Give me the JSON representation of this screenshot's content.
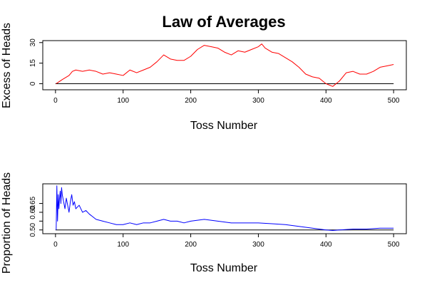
{
  "chart_data": [
    {
      "type": "line",
      "title": "Law of Averages",
      "xlabel": "Toss Number",
      "ylabel": "Excess of Heads",
      "xlim": [
        0,
        500
      ],
      "ylim": [
        -3,
        30
      ],
      "xticks": [
        0,
        100,
        200,
        300,
        400,
        500
      ],
      "yticks": [
        0,
        15,
        30
      ],
      "reference_line": 0,
      "grid": false,
      "series": [
        {
          "color": "#ff0000",
          "x": [
            1,
            10,
            20,
            25,
            30,
            40,
            50,
            60,
            70,
            80,
            90,
            100,
            110,
            120,
            130,
            140,
            150,
            160,
            170,
            180,
            190,
            200,
            210,
            220,
            230,
            240,
            250,
            260,
            270,
            280,
            290,
            300,
            305,
            310,
            320,
            330,
            340,
            350,
            360,
            370,
            380,
            390,
            400,
            405,
            410,
            420,
            430,
            440,
            450,
            460,
            470,
            480,
            490,
            500
          ],
          "y": [
            0,
            3,
            6,
            9,
            10,
            9,
            10,
            9,
            7,
            8,
            7,
            6,
            10,
            8,
            10,
            12,
            16,
            21,
            18,
            17,
            17,
            20,
            25,
            28,
            27,
            26,
            23,
            21,
            24,
            23,
            25,
            27,
            29,
            26,
            23,
            22,
            19,
            16,
            12,
            7,
            5,
            4,
            0,
            -1,
            -2,
            2,
            8,
            9,
            7,
            7,
            9,
            12,
            13,
            14
          ]
        }
      ]
    },
    {
      "type": "line",
      "xlabel": "Toss Number",
      "ylabel": "Proportion of Heads",
      "xlim": [
        0,
        500
      ],
      "ylim": [
        0.49,
        0.75
      ],
      "xticks": [
        0,
        100,
        200,
        300,
        400,
        500
      ],
      "yticks": [
        0.5,
        0.55,
        0.6,
        0.65
      ],
      "ytick_labels": [
        "0.50",
        "",
        "0.60",
        "0.65"
      ],
      "reference_line": 0.5,
      "grid": false,
      "series": [
        {
          "color": "#0000ff",
          "x": [
            1,
            2,
            3,
            4,
            5,
            6,
            7,
            8,
            9,
            10,
            12,
            14,
            16,
            18,
            20,
            22,
            24,
            26,
            28,
            30,
            35,
            40,
            45,
            50,
            60,
            70,
            80,
            90,
            100,
            110,
            120,
            130,
            140,
            150,
            160,
            170,
            180,
            190,
            200,
            220,
            240,
            260,
            280,
            300,
            320,
            340,
            360,
            380,
            400,
            410,
            420,
            440,
            460,
            480,
            500
          ],
          "y": [
            0.5,
            0.75,
            0.55,
            0.7,
            0.62,
            0.68,
            0.72,
            0.65,
            0.74,
            0.7,
            0.66,
            0.62,
            0.68,
            0.64,
            0.6,
            0.66,
            0.7,
            0.64,
            0.66,
            0.62,
            0.64,
            0.6,
            0.61,
            0.59,
            0.56,
            0.55,
            0.54,
            0.53,
            0.53,
            0.54,
            0.53,
            0.54,
            0.54,
            0.55,
            0.56,
            0.55,
            0.55,
            0.54,
            0.55,
            0.56,
            0.55,
            0.54,
            0.54,
            0.54,
            0.535,
            0.53,
            0.52,
            0.51,
            0.5,
            0.497,
            0.5,
            0.505,
            0.505,
            0.51,
            0.51
          ]
        }
      ]
    }
  ]
}
